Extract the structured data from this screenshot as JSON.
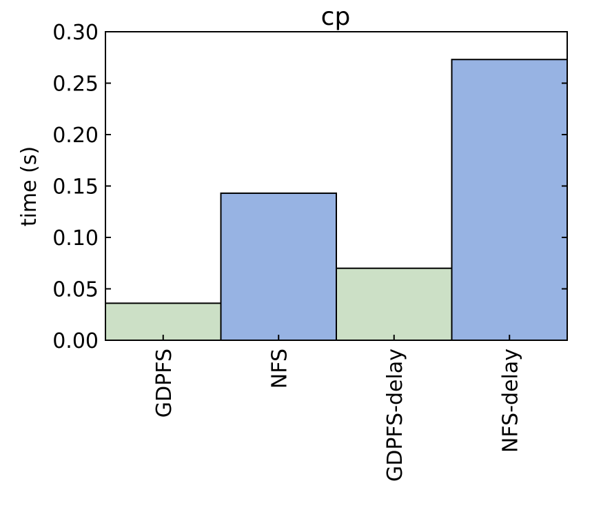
{
  "chart_data": {
    "type": "bar",
    "title": "cp",
    "xlabel": "",
    "ylabel": "time (s)",
    "categories": [
      "GDPFS",
      "NFS",
      "GDPFS-delay",
      "NFS-delay"
    ],
    "values": [
      0.036,
      0.143,
      0.07,
      0.273
    ],
    "bar_colors": [
      "#cce0c6",
      "#97b3e3",
      "#cce0c6",
      "#97b3e3"
    ],
    "ylim": [
      0,
      0.3
    ],
    "yticks": [
      "0.00",
      "0.05",
      "0.10",
      "0.15",
      "0.20",
      "0.25",
      "0.30"
    ],
    "grid": false,
    "legend": "none"
  }
}
